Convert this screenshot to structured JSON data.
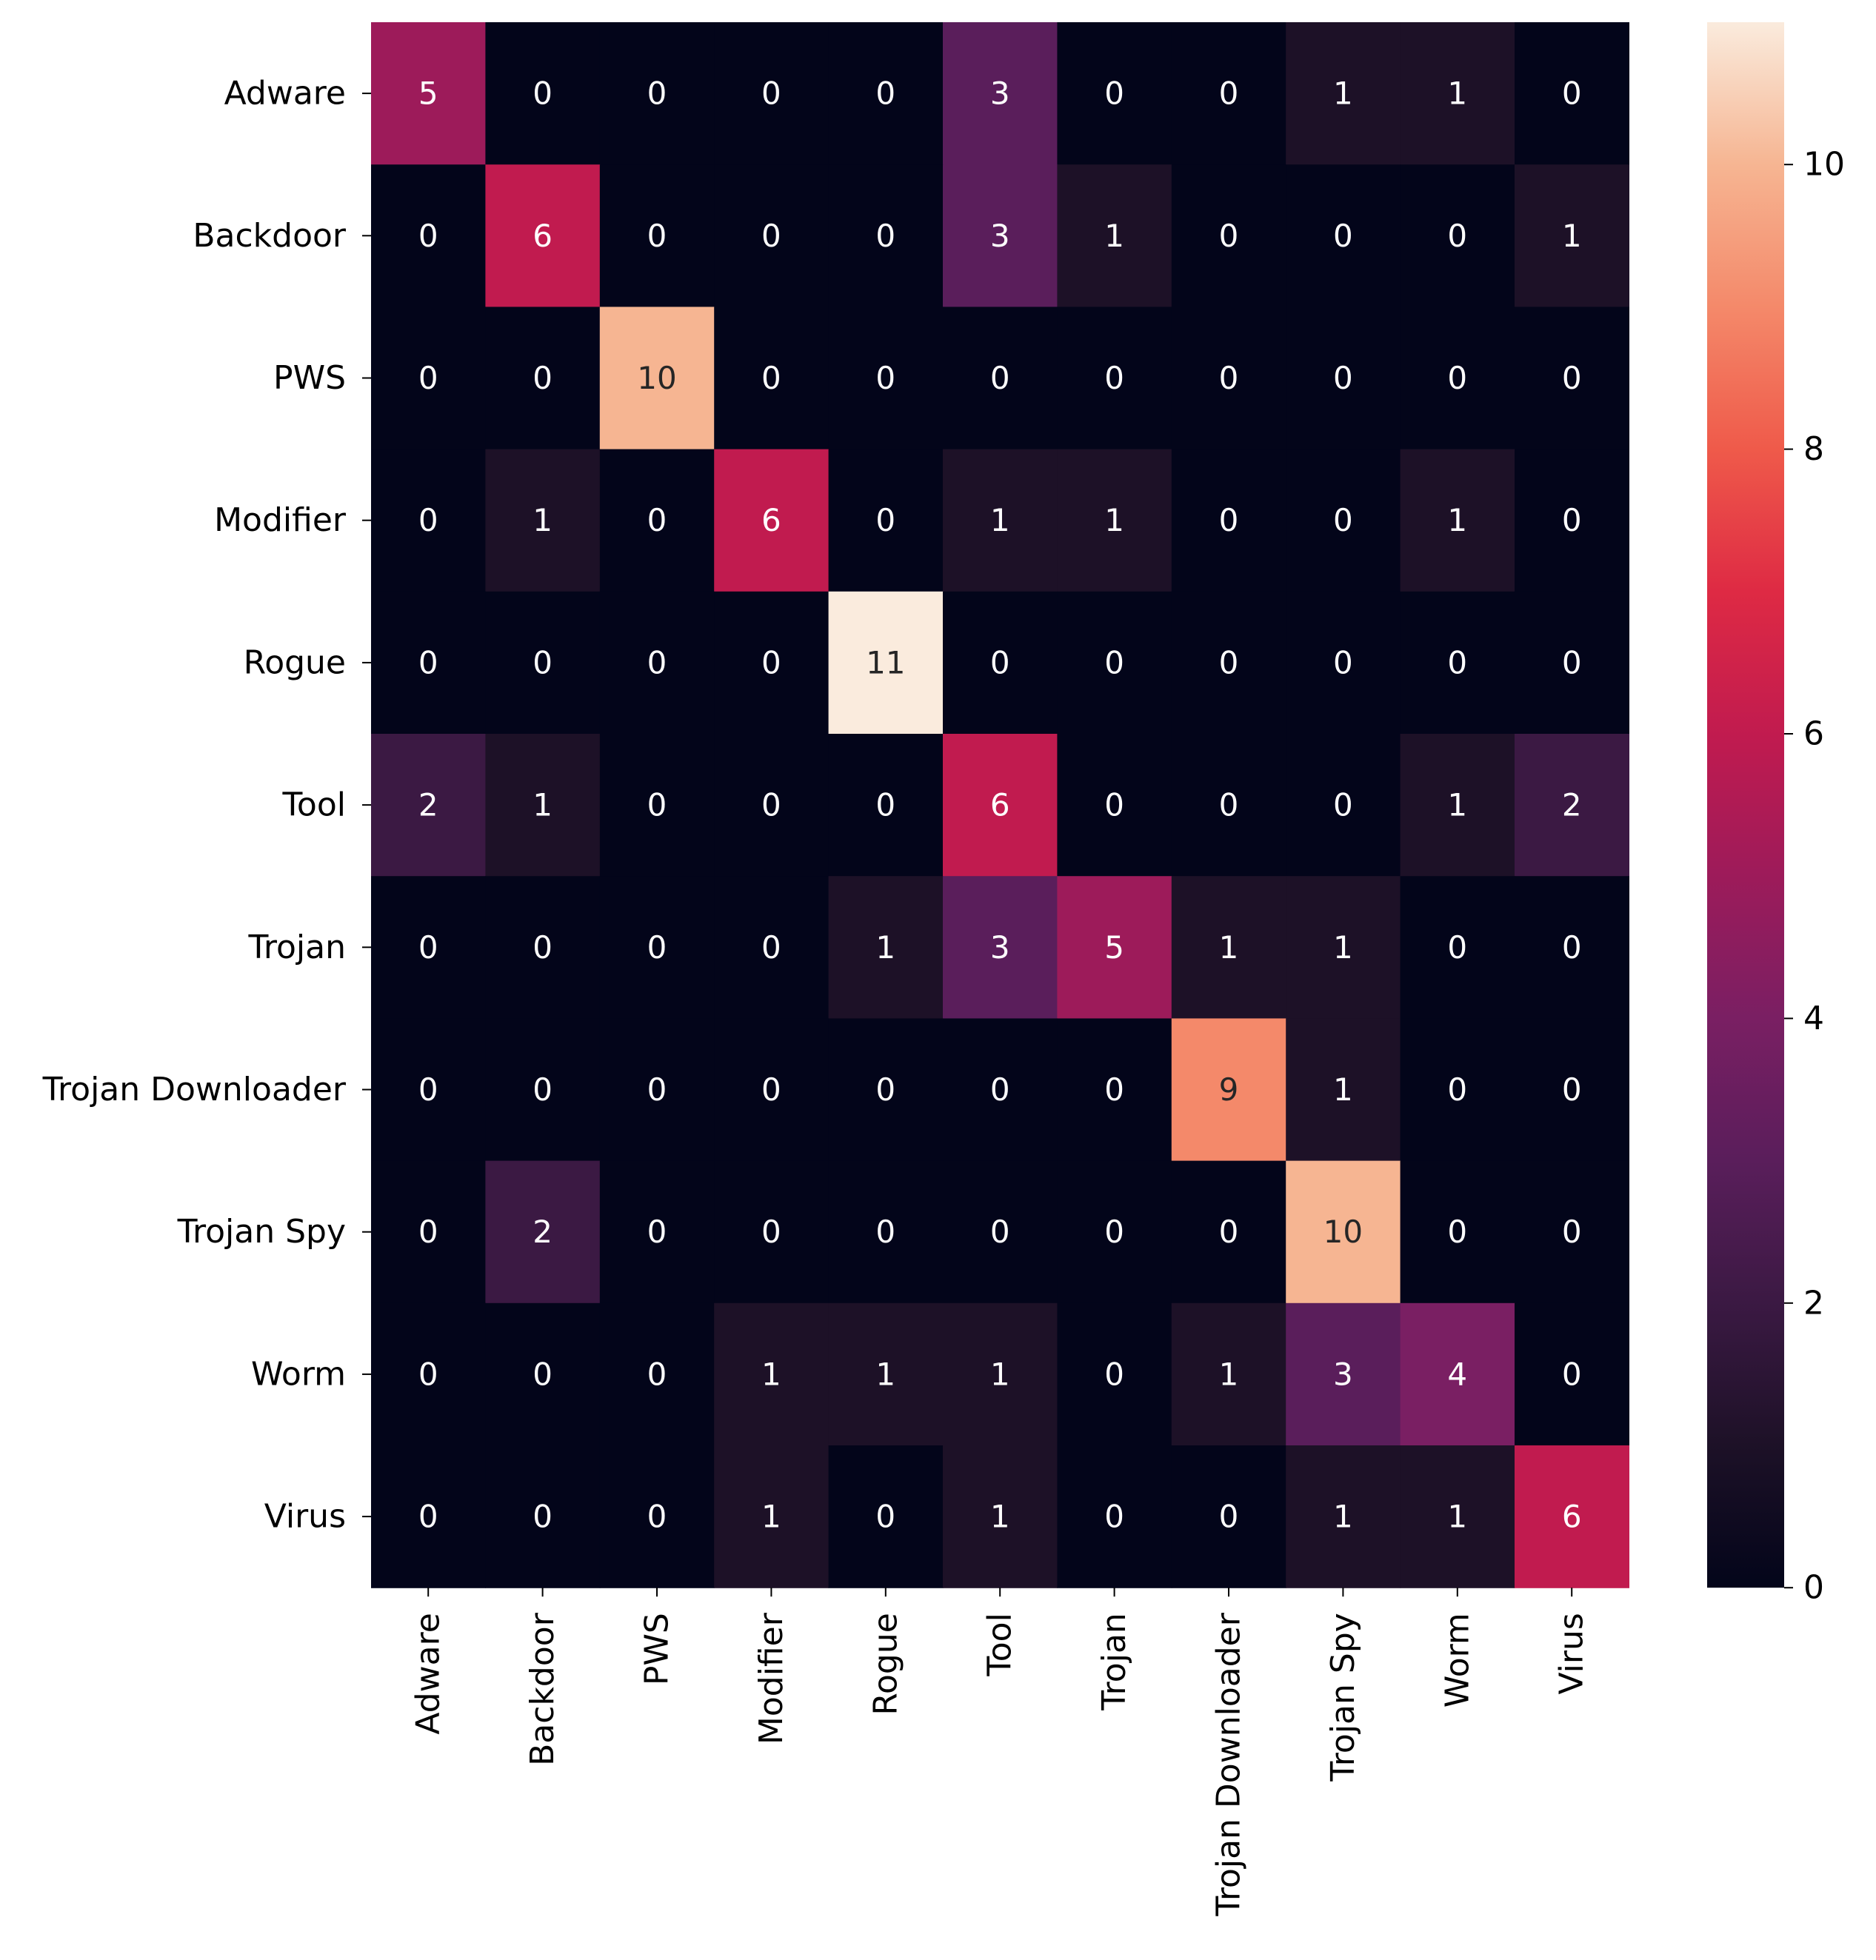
{
  "chart_data": {
    "type": "heatmap",
    "title": "",
    "xlabel": "",
    "ylabel": "",
    "row_labels": [
      "Adware",
      "Backdoor",
      "PWS",
      "Modifier",
      "Rogue",
      "Tool",
      "Trojan",
      "Trojan Downloader",
      "Trojan Spy",
      "Worm",
      "Virus"
    ],
    "col_labels": [
      "Adware",
      "Backdoor",
      "PWS",
      "Modifier",
      "Rogue",
      "Tool",
      "Trojan",
      "Trojan Downloader",
      "Trojan Spy",
      "Worm",
      "Virus"
    ],
    "values": [
      [
        5,
        0,
        0,
        0,
        0,
        3,
        0,
        0,
        1,
        1,
        0
      ],
      [
        0,
        6,
        0,
        0,
        0,
        3,
        1,
        0,
        0,
        0,
        1
      ],
      [
        0,
        0,
        10,
        0,
        0,
        0,
        0,
        0,
        0,
        0,
        0
      ],
      [
        0,
        1,
        0,
        6,
        0,
        1,
        1,
        0,
        0,
        1,
        0
      ],
      [
        0,
        0,
        0,
        0,
        11,
        0,
        0,
        0,
        0,
        0,
        0
      ],
      [
        2,
        1,
        0,
        0,
        0,
        6,
        0,
        0,
        0,
        1,
        2
      ],
      [
        0,
        0,
        0,
        0,
        1,
        3,
        5,
        1,
        1,
        0,
        0
      ],
      [
        0,
        0,
        0,
        0,
        0,
        0,
        0,
        9,
        1,
        0,
        0
      ],
      [
        0,
        2,
        0,
        0,
        0,
        0,
        0,
        0,
        10,
        0,
        0
      ],
      [
        0,
        0,
        0,
        1,
        1,
        1,
        0,
        1,
        3,
        4,
        0
      ],
      [
        0,
        0,
        0,
        1,
        0,
        1,
        0,
        0,
        1,
        1,
        6
      ]
    ],
    "colorbar": {
      "vmin": 0,
      "vmax": 11,
      "ticks": [
        0,
        2,
        4,
        6,
        8,
        10
      ],
      "colormap": "rocket"
    },
    "annot_colors": {
      "dark_bg": "#ffffff",
      "light_bg": "#262626"
    }
  }
}
